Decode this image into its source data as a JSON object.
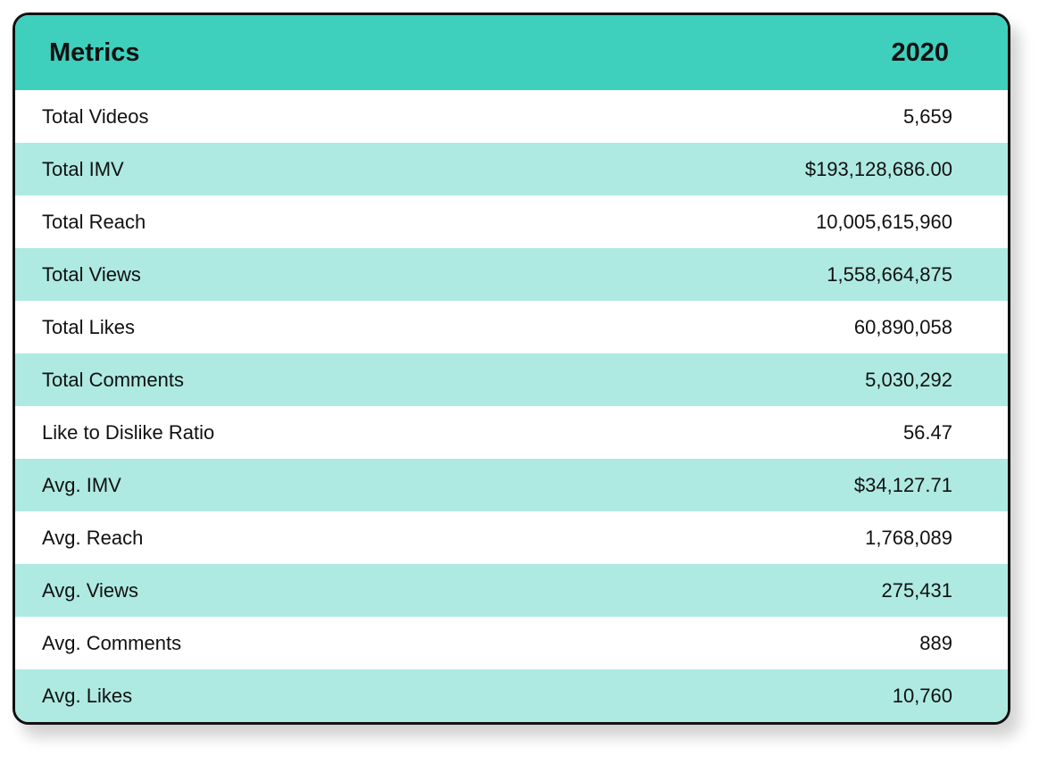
{
  "table": {
    "header": {
      "metrics": "Metrics",
      "year": "2020"
    },
    "rows": [
      {
        "metric": "Total Videos",
        "value": "5,659"
      },
      {
        "metric": "Total IMV",
        "value": "$193,128,686.00"
      },
      {
        "metric": "Total Reach",
        "value": "10,005,615,960"
      },
      {
        "metric": "Total Views",
        "value": "1,558,664,875"
      },
      {
        "metric": "Total Likes",
        "value": "60,890,058"
      },
      {
        "metric": "Total Comments",
        "value": "5,030,292"
      },
      {
        "metric": "Like to Dislike Ratio",
        "value": "56.47"
      },
      {
        "metric": "Avg. IMV",
        "value": "$34,127.71"
      },
      {
        "metric": "Avg. Reach",
        "value": "1,768,089"
      },
      {
        "metric": "Avg. Views",
        "value": "275,431"
      },
      {
        "metric": "Avg. Comments",
        "value": "889"
      },
      {
        "metric": "Avg. Likes",
        "value": "10,760"
      }
    ]
  },
  "colors": {
    "header_bg": "#3fcfbd",
    "stripe_bg": "#aeeae2",
    "border": "#111111",
    "text": "#111111"
  },
  "chart_data": {
    "type": "table",
    "title": "Metrics 2020",
    "columns": [
      "Metrics",
      "2020"
    ],
    "rows": [
      [
        "Total Videos",
        "5,659"
      ],
      [
        "Total IMV",
        "$193,128,686.00"
      ],
      [
        "Total Reach",
        "10,005,615,960"
      ],
      [
        "Total Views",
        "1,558,664,875"
      ],
      [
        "Total Likes",
        "60,890,058"
      ],
      [
        "Total Comments",
        "5,030,292"
      ],
      [
        "Like to Dislike Ratio",
        "56.47"
      ],
      [
        "Avg. IMV",
        "$34,127.71"
      ],
      [
        "Avg. Reach",
        "1,768,089"
      ],
      [
        "Avg. Views",
        "275,431"
      ],
      [
        "Avg. Comments",
        "889"
      ],
      [
        "Avg. Likes",
        "10,760"
      ]
    ]
  }
}
